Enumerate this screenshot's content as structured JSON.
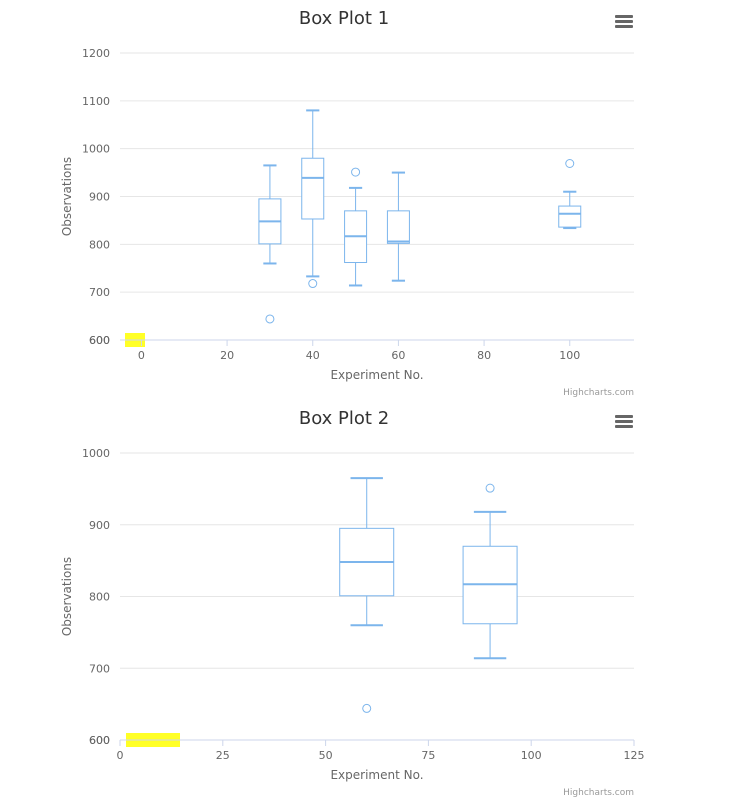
{
  "colors": {
    "series": "#7cb5ec",
    "highlight": "#ffff00",
    "menu": "#666666"
  },
  "credits": "Highcharts.com",
  "menu_icon": "hamburger-menu-icon",
  "chart_data": [
    {
      "type": "boxplot",
      "title": "Box Plot 1",
      "xlabel": "Experiment No.",
      "ylabel": "Observations",
      "xlim": [
        -5,
        115
      ],
      "ylim": [
        600,
        1200
      ],
      "x_ticks": [
        0,
        20,
        40,
        60,
        80,
        100
      ],
      "y_ticks": [
        600,
        700,
        800,
        900,
        1000,
        1100,
        1200
      ],
      "grid": true,
      "boxes": [
        {
          "x": 30,
          "low": 760,
          "q1": 801,
          "median": 848,
          "q3": 895,
          "high": 965
        },
        {
          "x": 40,
          "low": 733,
          "q1": 853,
          "median": 939,
          "q3": 980,
          "high": 1080
        },
        {
          "x": 50,
          "low": 714,
          "q1": 762,
          "median": 817,
          "q3": 870,
          "high": 918
        },
        {
          "x": 60,
          "low": 724,
          "q1": 802,
          "median": 806,
          "q3": 870,
          "high": 950
        },
        {
          "x": 100,
          "low": 834,
          "q1": 836,
          "median": 864,
          "q3": 880,
          "high": 910
        }
      ],
      "outliers": [
        {
          "x": 30,
          "y": 644
        },
        {
          "x": 40,
          "y": 718
        },
        {
          "x": 50,
          "y": 951
        },
        {
          "x": 100,
          "y": 969
        }
      ]
    },
    {
      "type": "boxplot",
      "title": "Box Plot 2",
      "xlabel": "Experiment No.",
      "ylabel": "Observations",
      "xlim": [
        0,
        125
      ],
      "ylim": [
        600,
        1000
      ],
      "x_ticks": [
        0,
        25,
        50,
        75,
        100,
        125
      ],
      "y_ticks": [
        600,
        700,
        800,
        900,
        1000
      ],
      "grid": true,
      "boxes": [
        {
          "x": 60,
          "low": 760,
          "q1": 801,
          "median": 848,
          "q3": 895,
          "high": 965
        },
        {
          "x": 90,
          "low": 714,
          "q1": 762,
          "median": 817,
          "q3": 870,
          "high": 918
        }
      ],
      "outliers": [
        {
          "x": 60,
          "y": 644
        },
        {
          "x": 90,
          "y": 951
        }
      ]
    }
  ]
}
